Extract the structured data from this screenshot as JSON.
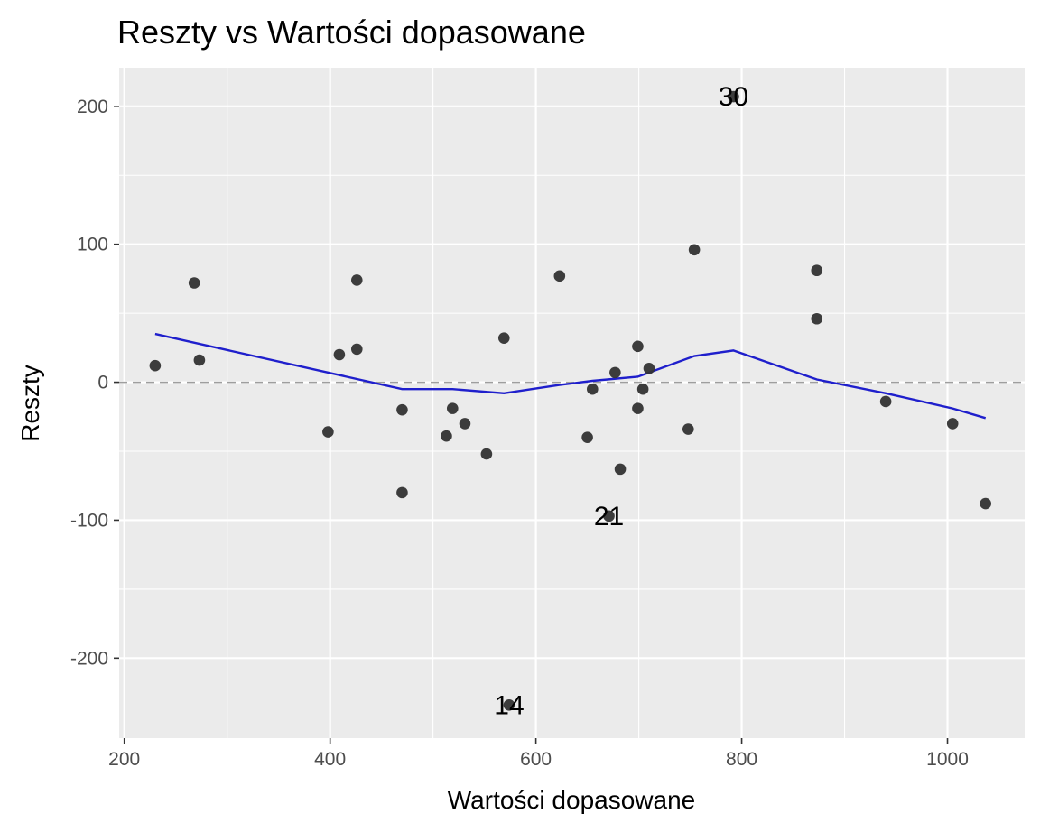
{
  "chart_data": {
    "type": "scatter",
    "title": "Reszty vs Wartości dopasowane",
    "xlabel": "Wartości dopasowane",
    "ylabel": "Reszty",
    "xlim": [
      195,
      1075
    ],
    "ylim": [
      -258,
      228
    ],
    "x_ticks": [
      200,
      400,
      600,
      800,
      1000
    ],
    "x_tick_labels": [
      "200",
      "400",
      "600",
      "800",
      "1000"
    ],
    "x_minor": [
      300,
      500,
      700,
      900
    ],
    "y_ticks": [
      -200,
      -100,
      0,
      100,
      200
    ],
    "y_tick_labels": [
      "-200",
      "-100",
      "0",
      "100",
      "200"
    ],
    "y_minor": [
      -150,
      -50,
      50,
      150
    ],
    "grid": true,
    "reference_line": {
      "y": 0,
      "style": "dashed",
      "color": "#9e9e9e"
    },
    "points": [
      {
        "x": 230,
        "y": 12
      },
      {
        "x": 268,
        "y": 72
      },
      {
        "x": 273,
        "y": 16
      },
      {
        "x": 398,
        "y": -36
      },
      {
        "x": 409,
        "y": 20
      },
      {
        "x": 426,
        "y": 74
      },
      {
        "x": 426,
        "y": 24
      },
      {
        "x": 470,
        "y": -20
      },
      {
        "x": 470,
        "y": -80
      },
      {
        "x": 513,
        "y": -39
      },
      {
        "x": 519,
        "y": -19
      },
      {
        "x": 531,
        "y": -30
      },
      {
        "x": 552,
        "y": -52
      },
      {
        "x": 569,
        "y": 32
      },
      {
        "x": 574,
        "y": -234
      },
      {
        "x": 623,
        "y": 77
      },
      {
        "x": 650,
        "y": -40
      },
      {
        "x": 655,
        "y": -5
      },
      {
        "x": 671,
        "y": -97
      },
      {
        "x": 677,
        "y": 7
      },
      {
        "x": 682,
        "y": -63
      },
      {
        "x": 699,
        "y": 26
      },
      {
        "x": 699,
        "y": -19
      },
      {
        "x": 704,
        "y": -5
      },
      {
        "x": 710,
        "y": 10
      },
      {
        "x": 748,
        "y": -34
      },
      {
        "x": 754,
        "y": 96
      },
      {
        "x": 792,
        "y": 207
      },
      {
        "x": 873,
        "y": 81
      },
      {
        "x": 873,
        "y": 46
      },
      {
        "x": 940,
        "y": -14
      },
      {
        "x": 1005,
        "y": -30
      },
      {
        "x": 1037,
        "y": -88
      }
    ],
    "point_labels": [
      {
        "text": "30",
        "x": 792,
        "y": 207
      },
      {
        "text": "21",
        "x": 671,
        "y": -97
      },
      {
        "text": "14",
        "x": 574,
        "y": -234
      }
    ],
    "smooth_line": {
      "color": "#1f1fcc",
      "x": [
        230,
        470,
        519,
        569,
        623,
        655,
        699,
        710,
        754,
        792,
        873,
        940,
        1005,
        1037
      ],
      "y": [
        35,
        -5,
        -5,
        -8,
        -2,
        1,
        4,
        7,
        19,
        23,
        2,
        -8,
        -19,
        -26
      ]
    }
  }
}
